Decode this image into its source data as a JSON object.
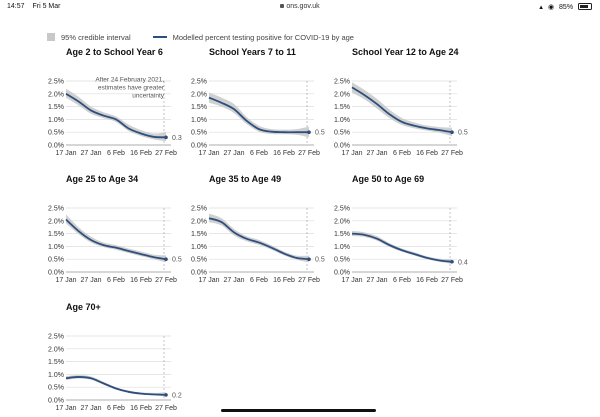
{
  "status_bar": {
    "time": "14:57",
    "date": "Fri 5 Mar",
    "url": "ons.gov.uk",
    "battery": "85%",
    "icons": [
      "signal-icon",
      "wifi-icon",
      "battery-icon"
    ]
  },
  "legend": {
    "interval_label": "95% credible interval",
    "line_label": "Modelled percent testing positive for COVID-19 by age"
  },
  "colors": {
    "line": "#2e4f7e",
    "band": "#c8c8c8",
    "grid": "#dddddd",
    "marker": "#aaaaaa"
  },
  "chart_data": [
    {
      "type": "line",
      "title": "Age 2 to School Year 6",
      "annotation": "After 24 February 2021, estimates have greater uncertainty",
      "x": [
        "17 Jan",
        "22 Jan",
        "27 Jan",
        "1 Feb",
        "6 Feb",
        "11 Feb",
        "16 Feb",
        "21 Feb",
        "27 Feb"
      ],
      "x_ticks": [
        "17 Jan",
        "27 Jan",
        "6 Feb",
        "16 Feb",
        "27 Feb"
      ],
      "y_ticks": [
        "2.5%",
        "2.0%",
        "1.5%",
        "1.0%",
        "0.5%",
        "0.0%"
      ],
      "ylim": [
        0,
        2.5
      ],
      "values": [
        2.0,
        1.7,
        1.35,
        1.15,
        1.0,
        0.65,
        0.45,
        0.32,
        0.3
      ],
      "lower": [
        1.85,
        1.55,
        1.22,
        1.05,
        0.9,
        0.55,
        0.35,
        0.22,
        0.15
      ],
      "upper": [
        2.2,
        1.88,
        1.5,
        1.28,
        1.12,
        0.8,
        0.58,
        0.45,
        0.5
      ],
      "end_label": "0.3"
    },
    {
      "type": "line",
      "title": "School Years 7 to 11",
      "x": [
        "17 Jan",
        "22 Jan",
        "27 Jan",
        "1 Feb",
        "6 Feb",
        "11 Feb",
        "16 Feb",
        "21 Feb",
        "27 Feb"
      ],
      "x_ticks": [
        "17 Jan",
        "27 Jan",
        "6 Feb",
        "16 Feb",
        "27 Feb"
      ],
      "y_ticks": [
        "2.5%",
        "2.0%",
        "1.5%",
        "1.0%",
        "0.5%",
        "0.0%"
      ],
      "ylim": [
        0,
        2.5
      ],
      "values": [
        1.85,
        1.65,
        1.4,
        0.95,
        0.62,
        0.52,
        0.5,
        0.5,
        0.5
      ],
      "lower": [
        1.65,
        1.5,
        1.25,
        0.82,
        0.52,
        0.43,
        0.42,
        0.4,
        0.3
      ],
      "upper": [
        2.05,
        1.85,
        1.6,
        1.1,
        0.75,
        0.62,
        0.6,
        0.62,
        0.72
      ],
      "end_label": "0.5"
    },
    {
      "type": "line",
      "title": "School Year 12 to Age 24",
      "x": [
        "17 Jan",
        "22 Jan",
        "27 Jan",
        "1 Feb",
        "6 Feb",
        "11 Feb",
        "16 Feb",
        "21 Feb",
        "27 Feb"
      ],
      "x_ticks": [
        "17 Jan",
        "27 Jan",
        "6 Feb",
        "16 Feb",
        "27 Feb"
      ],
      "y_ticks": [
        "2.5%",
        "2.0%",
        "1.5%",
        "1.0%",
        "0.5%",
        "0.0%"
      ],
      "ylim": [
        0,
        2.5
      ],
      "values": [
        2.25,
        1.95,
        1.6,
        1.2,
        0.9,
        0.75,
        0.65,
        0.58,
        0.5
      ],
      "lower": [
        2.05,
        1.78,
        1.42,
        1.05,
        0.78,
        0.65,
        0.56,
        0.48,
        0.35
      ],
      "upper": [
        2.45,
        2.15,
        1.8,
        1.38,
        1.05,
        0.88,
        0.76,
        0.7,
        0.68
      ],
      "end_label": "0.5"
    },
    {
      "type": "line",
      "title": "Age 25 to Age 34",
      "x": [
        "17 Jan",
        "22 Jan",
        "27 Jan",
        "1 Feb",
        "6 Feb",
        "11 Feb",
        "16 Feb",
        "21 Feb",
        "27 Feb"
      ],
      "x_ticks": [
        "17 Jan",
        "27 Jan",
        "6 Feb",
        "16 Feb",
        "27 Feb"
      ],
      "y_ticks": [
        "2.5%",
        "2.0%",
        "1.5%",
        "1.0%",
        "0.5%",
        "0.0%"
      ],
      "ylim": [
        0,
        2.5
      ],
      "values": [
        2.05,
        1.6,
        1.25,
        1.05,
        0.95,
        0.82,
        0.7,
        0.58,
        0.5
      ],
      "lower": [
        1.9,
        1.48,
        1.15,
        0.97,
        0.87,
        0.74,
        0.62,
        0.5,
        0.38
      ],
      "upper": [
        2.25,
        1.75,
        1.38,
        1.15,
        1.05,
        0.92,
        0.8,
        0.68,
        0.65
      ],
      "end_label": "0.5"
    },
    {
      "type": "line",
      "title": "Age 35 to Age 49",
      "x": [
        "17 Jan",
        "22 Jan",
        "27 Jan",
        "1 Feb",
        "6 Feb",
        "11 Feb",
        "16 Feb",
        "21 Feb",
        "27 Feb"
      ],
      "x_ticks": [
        "17 Jan",
        "27 Jan",
        "6 Feb",
        "16 Feb",
        "27 Feb"
      ],
      "y_ticks": [
        "2.5%",
        "2.0%",
        "1.5%",
        "1.0%",
        "0.5%",
        "0.0%"
      ],
      "ylim": [
        0,
        2.5
      ],
      "values": [
        2.1,
        1.95,
        1.55,
        1.3,
        1.15,
        0.95,
        0.72,
        0.55,
        0.5
      ],
      "lower": [
        1.95,
        1.82,
        1.43,
        1.2,
        1.06,
        0.87,
        0.65,
        0.48,
        0.38
      ],
      "upper": [
        2.28,
        2.1,
        1.68,
        1.4,
        1.25,
        1.04,
        0.8,
        0.64,
        0.64
      ],
      "end_label": "0.5"
    },
    {
      "type": "line",
      "title": "Age 50 to Age 69",
      "x": [
        "17 Jan",
        "22 Jan",
        "27 Jan",
        "1 Feb",
        "6 Feb",
        "11 Feb",
        "16 Feb",
        "21 Feb",
        "27 Feb"
      ],
      "x_ticks": [
        "17 Jan",
        "27 Jan",
        "6 Feb",
        "16 Feb",
        "27 Feb"
      ],
      "y_ticks": [
        "2.5%",
        "2.0%",
        "1.5%",
        "1.0%",
        "0.5%",
        "0.0%"
      ],
      "ylim": [
        0,
        2.5
      ],
      "values": [
        1.5,
        1.45,
        1.3,
        1.05,
        0.85,
        0.7,
        0.55,
        0.45,
        0.4
      ],
      "lower": [
        1.4,
        1.37,
        1.22,
        0.98,
        0.79,
        0.64,
        0.5,
        0.4,
        0.32
      ],
      "upper": [
        1.6,
        1.55,
        1.4,
        1.13,
        0.92,
        0.77,
        0.61,
        0.52,
        0.5
      ],
      "end_label": "0.4"
    },
    {
      "type": "line",
      "title": "Age 70+",
      "x": [
        "17 Jan",
        "22 Jan",
        "27 Jan",
        "1 Feb",
        "6 Feb",
        "11 Feb",
        "16 Feb",
        "21 Feb",
        "27 Feb"
      ],
      "x_ticks": [
        "17 Jan",
        "27 Jan",
        "6 Feb",
        "16 Feb",
        "27 Feb"
      ],
      "y_ticks": [
        "2.5%",
        "2.0%",
        "1.5%",
        "1.0%",
        "0.5%",
        "0.0%"
      ],
      "ylim": [
        0,
        2.5
      ],
      "values": [
        0.85,
        0.9,
        0.85,
        0.65,
        0.45,
        0.32,
        0.25,
        0.22,
        0.2
      ],
      "lower": [
        0.78,
        0.84,
        0.79,
        0.6,
        0.41,
        0.28,
        0.21,
        0.18,
        0.14
      ],
      "upper": [
        0.93,
        0.97,
        0.92,
        0.71,
        0.5,
        0.37,
        0.3,
        0.28,
        0.3
      ],
      "end_label": "0.2"
    }
  ]
}
